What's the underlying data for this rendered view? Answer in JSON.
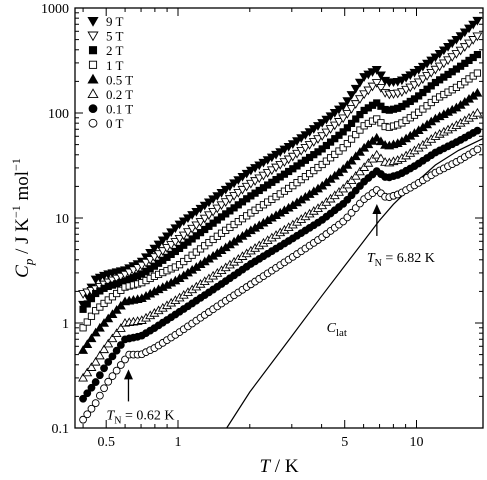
{
  "chart_data": {
    "type": "scatter",
    "x_scale": "log",
    "y_scale": "log",
    "xlim": [
      0.37,
      19
    ],
    "ylim": [
      0.1,
      1000
    ],
    "grid": false,
    "legend_position": "top-left",
    "x_axis_title": {
      "symbol": "T",
      "sep": " / ",
      "unit": "K"
    },
    "y_axis_title": {
      "symbol": "C",
      "symbol_sub": "p",
      "sep": " / ",
      "unit_a": "J K",
      "exp_a": "−1",
      "unit_b": " mol",
      "exp_b": "−1"
    },
    "x_ticks": [
      {
        "value": 0.5,
        "label": "0.5"
      },
      {
        "value": 1,
        "label": "1"
      },
      {
        "value": 5,
        "label": "5"
      },
      {
        "value": 10,
        "label": "10"
      }
    ],
    "y_ticks": [
      {
        "value": 0.1,
        "label": "0.1"
      },
      {
        "value": 1,
        "label": "1"
      },
      {
        "value": 10,
        "label": "10"
      },
      {
        "value": 100,
        "label": "100"
      },
      {
        "value": 1000,
        "label": "1000"
      }
    ],
    "series": [
      {
        "name": "9 T",
        "marker": "triangle-down",
        "filled": true,
        "points": [
          [
            0.4,
            1.5
          ],
          [
            0.45,
            2.6
          ],
          [
            0.5,
            2.9
          ],
          [
            0.6,
            3.2
          ],
          [
            0.7,
            3.8
          ],
          [
            0.8,
            5.2
          ],
          [
            1,
            8.5
          ],
          [
            1.5,
            17
          ],
          [
            2,
            28
          ],
          [
            3,
            50
          ],
          [
            4,
            80
          ],
          [
            5,
            120
          ],
          [
            6,
            220
          ],
          [
            6.8,
            260
          ],
          [
            7.5,
            195
          ],
          [
            8.5,
            200
          ],
          [
            10,
            250
          ],
          [
            12,
            340
          ],
          [
            15,
            520
          ],
          [
            18,
            760
          ]
        ]
      },
      {
        "name": "5 T",
        "marker": "triangle-down",
        "filled": false,
        "points": [
          [
            0.4,
            1.9
          ],
          [
            0.45,
            2.1
          ],
          [
            0.5,
            2.4
          ],
          [
            0.6,
            2.9
          ],
          [
            0.7,
            3.5
          ],
          [
            0.8,
            4.3
          ],
          [
            1,
            6.2
          ],
          [
            1.5,
            13
          ],
          [
            2,
            21
          ],
          [
            3,
            38
          ],
          [
            4,
            60
          ],
          [
            5,
            92
          ],
          [
            6,
            150
          ],
          [
            6.8,
            195
          ],
          [
            7.5,
            150
          ],
          [
            8.5,
            155
          ],
          [
            10,
            190
          ],
          [
            12,
            260
          ],
          [
            15,
            380
          ],
          [
            18,
            540
          ]
        ]
      },
      {
        "name": "2 T",
        "marker": "square",
        "filled": true,
        "points": [
          [
            0.4,
            1.35
          ],
          [
            0.45,
            1.9
          ],
          [
            0.5,
            2.2
          ],
          [
            0.6,
            2.5
          ],
          [
            0.7,
            2.9
          ],
          [
            0.8,
            3.5
          ],
          [
            1,
            5
          ],
          [
            1.5,
            10
          ],
          [
            2,
            16
          ],
          [
            3,
            29
          ],
          [
            4,
            45
          ],
          [
            5,
            68
          ],
          [
            6,
            105
          ],
          [
            6.8,
            125
          ],
          [
            7.5,
            105
          ],
          [
            8.5,
            112
          ],
          [
            10,
            140
          ],
          [
            12,
            195
          ],
          [
            15,
            270
          ],
          [
            18,
            360
          ]
        ]
      },
      {
        "name": "1 T",
        "marker": "square",
        "filled": false,
        "points": [
          [
            0.4,
            0.9
          ],
          [
            0.45,
            1.3
          ],
          [
            0.5,
            1.6
          ],
          [
            0.6,
            2.2
          ],
          [
            0.7,
            2.4
          ],
          [
            0.8,
            2.8
          ],
          [
            1,
            3.5
          ],
          [
            1.5,
            7
          ],
          [
            2,
            11
          ],
          [
            3,
            20
          ],
          [
            4,
            32
          ],
          [
            5,
            48
          ],
          [
            6,
            75
          ],
          [
            6.8,
            88
          ],
          [
            7.5,
            72
          ],
          [
            8.5,
            78
          ],
          [
            10,
            98
          ],
          [
            12,
            135
          ],
          [
            15,
            180
          ],
          [
            18,
            240
          ]
        ]
      },
      {
        "name": "0.5 T",
        "marker": "triangle-up",
        "filled": true,
        "points": [
          [
            0.4,
            0.55
          ],
          [
            0.45,
            0.8
          ],
          [
            0.5,
            1.05
          ],
          [
            0.6,
            1.6
          ],
          [
            0.7,
            1.7
          ],
          [
            0.8,
            2
          ],
          [
            1,
            2.6
          ],
          [
            1.5,
            4.8
          ],
          [
            2,
            7.5
          ],
          [
            3,
            13
          ],
          [
            4,
            20
          ],
          [
            5,
            30
          ],
          [
            6,
            46
          ],
          [
            6.8,
            58
          ],
          [
            7.5,
            48
          ],
          [
            8.5,
            52
          ],
          [
            10,
            66
          ],
          [
            12,
            88
          ],
          [
            15,
            115
          ],
          [
            18,
            155
          ]
        ]
      },
      {
        "name": "0.2 T",
        "marker": "triangle-up",
        "filled": false,
        "points": [
          [
            0.4,
            0.3
          ],
          [
            0.45,
            0.42
          ],
          [
            0.5,
            0.6
          ],
          [
            0.6,
            1
          ],
          [
            0.7,
            1.05
          ],
          [
            0.8,
            1.25
          ],
          [
            1,
            1.7
          ],
          [
            1.5,
            3.1
          ],
          [
            2,
            4.8
          ],
          [
            3,
            8.5
          ],
          [
            4,
            13
          ],
          [
            5,
            19.5
          ],
          [
            6,
            30
          ],
          [
            6.8,
            40
          ],
          [
            7.5,
            33
          ],
          [
            8.5,
            36
          ],
          [
            10,
            45
          ],
          [
            12,
            60
          ],
          [
            15,
            78
          ],
          [
            18,
            100
          ]
        ]
      },
      {
        "name": "0.1 T",
        "marker": "circle",
        "filled": true,
        "points": [
          [
            0.4,
            0.19
          ],
          [
            0.45,
            0.27
          ],
          [
            0.5,
            0.4
          ],
          [
            0.6,
            0.7
          ],
          [
            0.7,
            0.75
          ],
          [
            0.8,
            0.9
          ],
          [
            1,
            1.25
          ],
          [
            1.5,
            2.3
          ],
          [
            2,
            3.6
          ],
          [
            3,
            6.3
          ],
          [
            4,
            9.5
          ],
          [
            5,
            14
          ],
          [
            6,
            22
          ],
          [
            6.8,
            28
          ],
          [
            7.5,
            24
          ],
          [
            8.5,
            26
          ],
          [
            10,
            32
          ],
          [
            12,
            42
          ],
          [
            15,
            54
          ],
          [
            18,
            68
          ]
        ]
      },
      {
        "name": "0 T",
        "marker": "circle",
        "filled": false,
        "points": [
          [
            0.4,
            0.12
          ],
          [
            0.45,
            0.17
          ],
          [
            0.5,
            0.26
          ],
          [
            0.6,
            0.45
          ],
          [
            0.62,
            0.5
          ],
          [
            0.7,
            0.5
          ],
          [
            0.8,
            0.58
          ],
          [
            1,
            0.8
          ],
          [
            1.5,
            1.5
          ],
          [
            2,
            2.3
          ],
          [
            3,
            4.2
          ],
          [
            4,
            6.5
          ],
          [
            5,
            9.5
          ],
          [
            6,
            15
          ],
          [
            6.82,
            18.5
          ],
          [
            7.5,
            15.5
          ],
          [
            8.5,
            17
          ],
          [
            10,
            21
          ],
          [
            12,
            27
          ],
          [
            15,
            35
          ],
          [
            18,
            45
          ]
        ]
      }
    ],
    "lattice_curve": {
      "label": "C",
      "label_sub": "lat",
      "points": [
        [
          1.6,
          0.1
        ],
        [
          2,
          0.22
        ],
        [
          3,
          0.75
        ],
        [
          4,
          1.8
        ],
        [
          5,
          3.5
        ],
        [
          6,
          6
        ],
        [
          7,
          9.5
        ],
        [
          8,
          13.5
        ],
        [
          10,
          22
        ],
        [
          12,
          32
        ],
        [
          15,
          44
        ],
        [
          19,
          57
        ]
      ]
    },
    "annotations": [
      {
        "id": "tn-low",
        "label": "T",
        "label_sub": "N",
        "label_rest": " = 0.62 K",
        "x": 0.62,
        "y": 0.45
      },
      {
        "id": "tn-high",
        "label": "T",
        "label_sub": "N",
        "label_rest": " = 6.82 K",
        "x": 6.82,
        "y": 18.5
      }
    ]
  }
}
